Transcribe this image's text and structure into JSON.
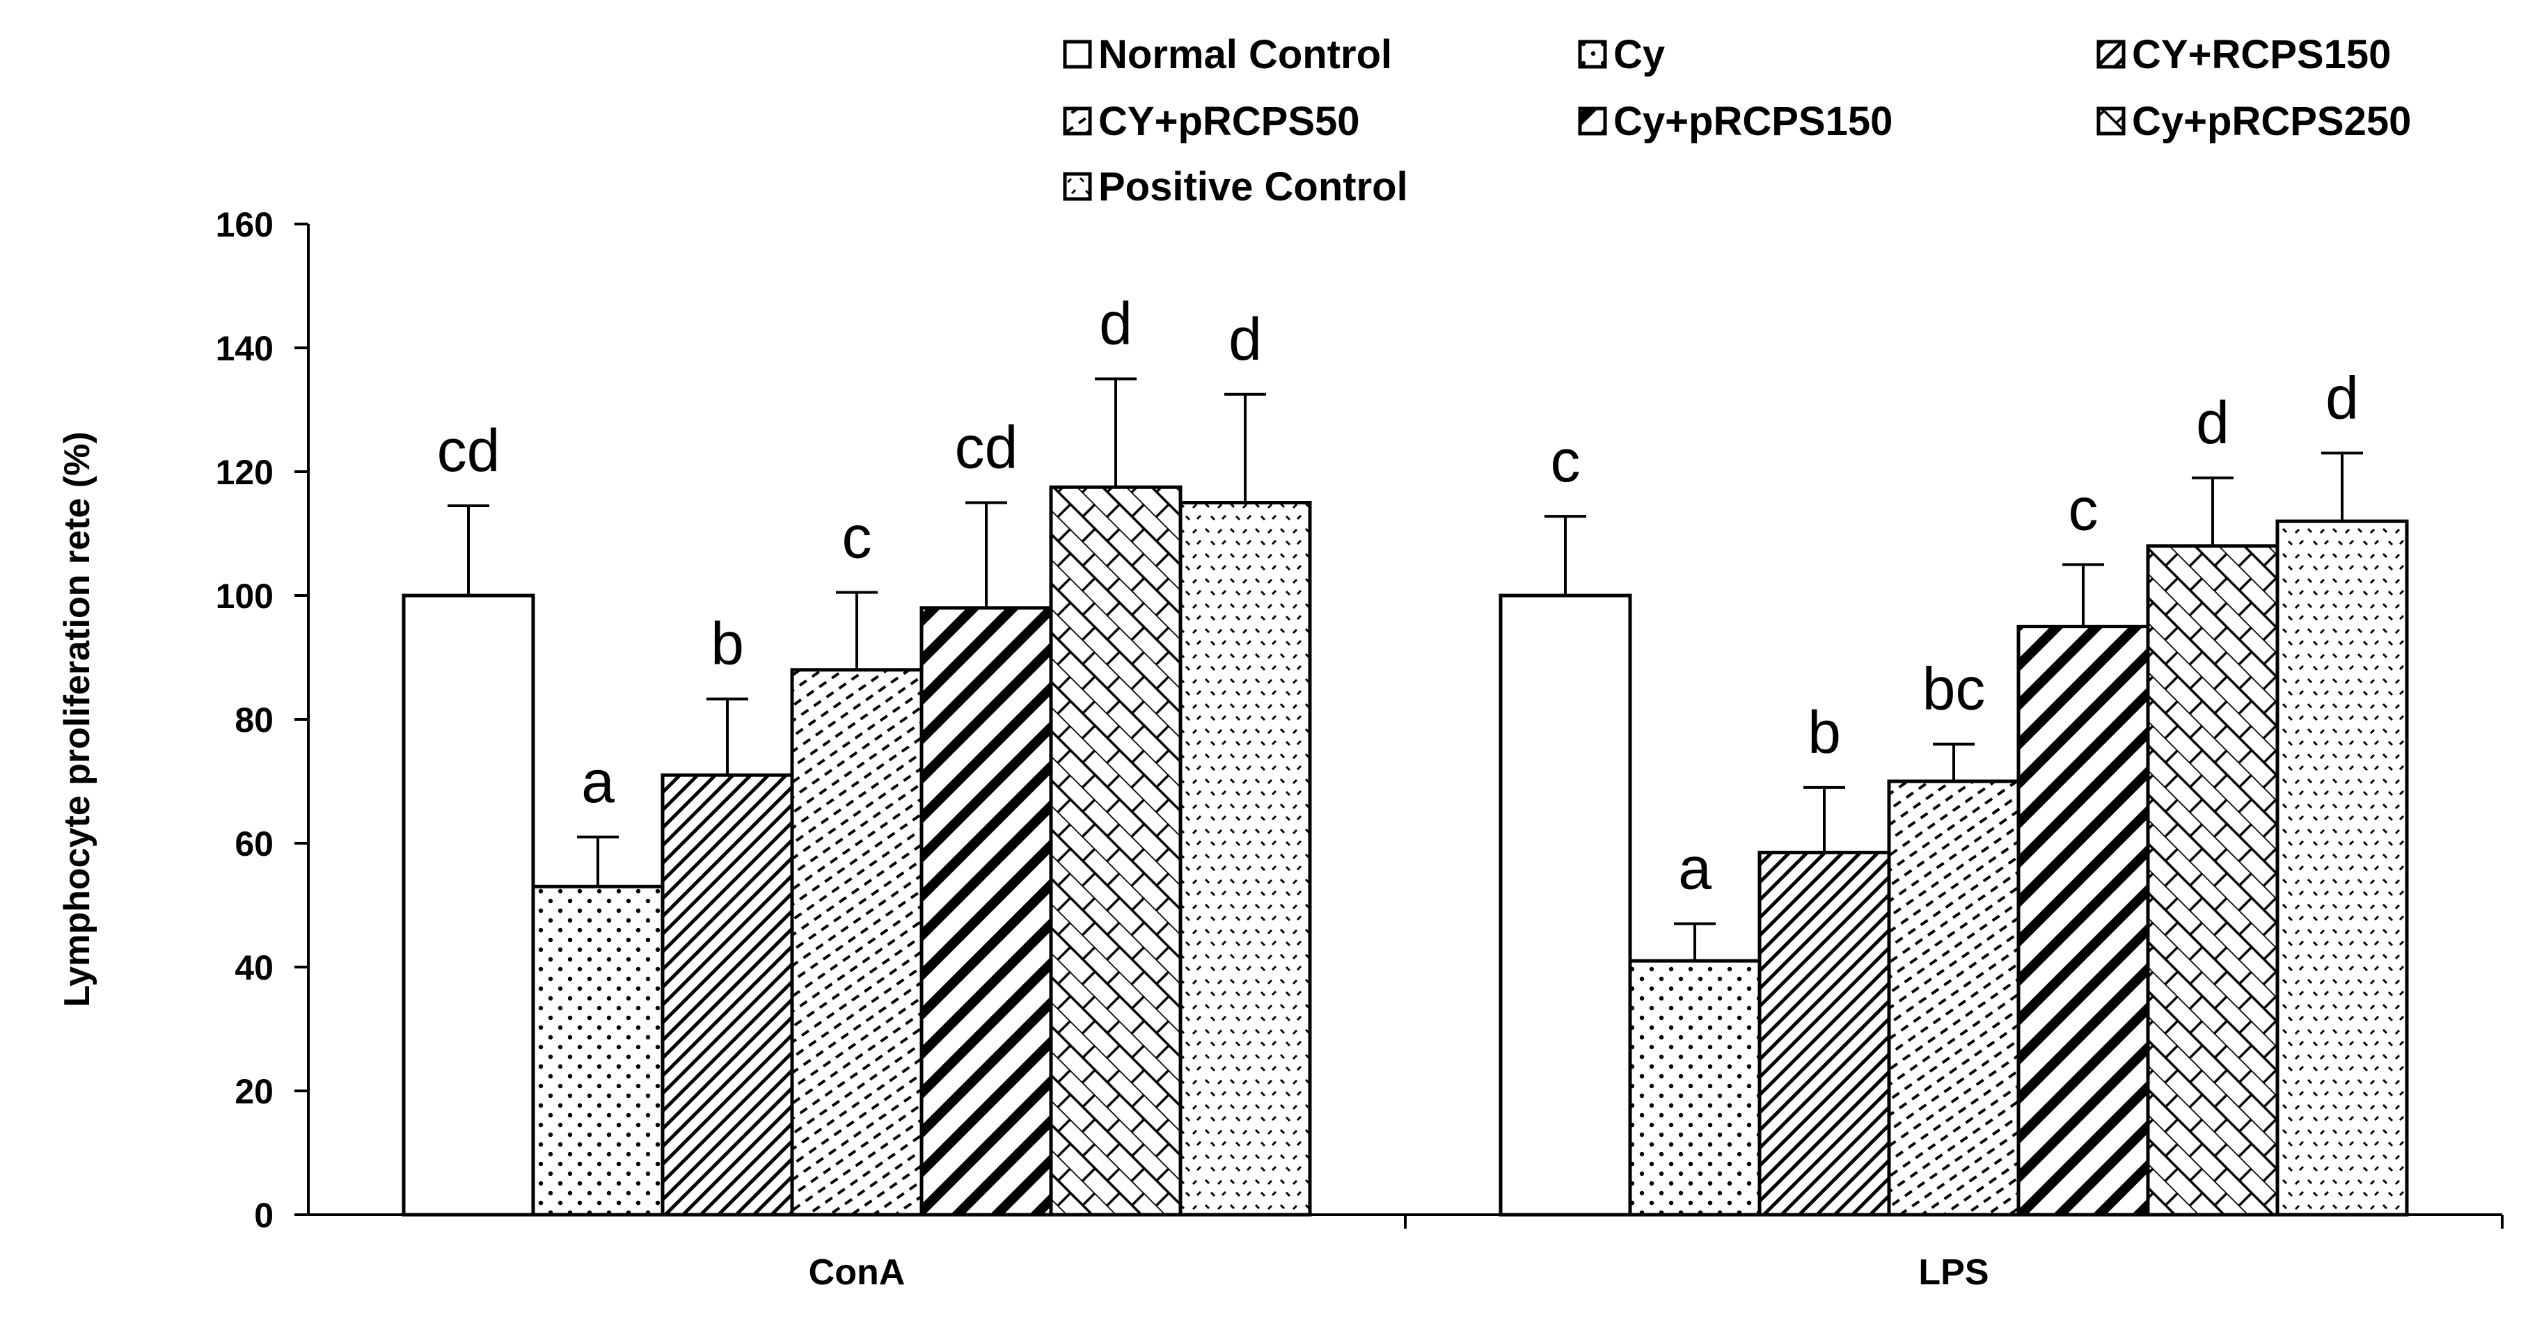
{
  "chart_data": {
    "type": "bar",
    "title": "",
    "xlabel": "",
    "ylabel": "Lymphocyte proliferation rete (%)",
    "ylim": [
      0,
      160
    ],
    "yticks": [
      0,
      20,
      40,
      60,
      80,
      100,
      120,
      140,
      160
    ],
    "grid": false,
    "legend_position": "top",
    "categories": [
      "ConA",
      "LPS"
    ],
    "series": [
      {
        "name": "Normal Control",
        "pattern": "none",
        "values": [
          100,
          100
        ],
        "errors": [
          14.5,
          12.8
        ],
        "significance": [
          "cd",
          "c"
        ]
      },
      {
        "name": "Cy",
        "pattern": "dots",
        "values": [
          53,
          41
        ],
        "errors": [
          8,
          6
        ],
        "significance": [
          "a",
          "a"
        ]
      },
      {
        "name": "CY+RCPS150",
        "pattern": "diagonal-fine",
        "values": [
          71,
          58.5
        ],
        "errors": [
          12.3,
          10.5
        ],
        "significance": [
          "b",
          "b"
        ]
      },
      {
        "name": "CY+pRCPS50",
        "pattern": "dashed-diagonal",
        "values": [
          88,
          70
        ],
        "errors": [
          12.5,
          6
        ],
        "significance": [
          "c",
          "bc"
        ]
      },
      {
        "name": "Cy+pRCPS150",
        "pattern": "wide-diagonal",
        "values": [
          98,
          95
        ],
        "errors": [
          17,
          10
        ],
        "significance": [
          "cd",
          "c"
        ]
      },
      {
        "name": "Cy+pRCPS250",
        "pattern": "weave",
        "values": [
          117.5,
          108
        ],
        "errors": [
          17.5,
          11
        ],
        "significance": [
          "d",
          "d"
        ]
      },
      {
        "name": "Positive Control",
        "pattern": "confetti",
        "values": [
          115,
          112
        ],
        "errors": [
          17.5,
          11
        ],
        "significance": [
          "d",
          "d"
        ]
      }
    ]
  }
}
